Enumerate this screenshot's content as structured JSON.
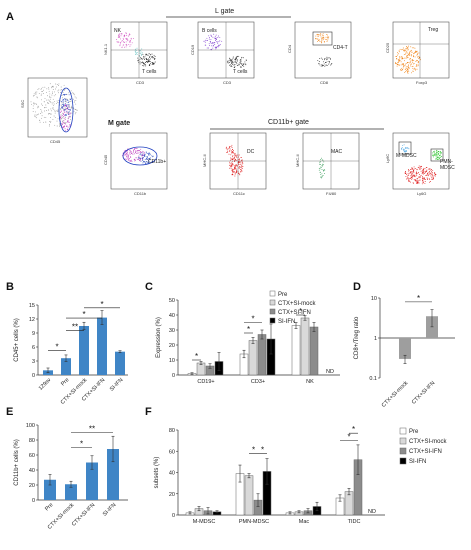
{
  "panels": {
    "a": "A",
    "b": "B",
    "c": "C",
    "d": "D",
    "e": "E",
    "f": "F"
  },
  "flow": {
    "l_gate": "L gate",
    "m_gate": "M gate",
    "cd11b_gate": "CD11b+ gate",
    "nk": "NK",
    "t_cells": "T cells",
    "b_cells": "B cells",
    "t_cells2": "T cells",
    "cd4t": "CD4-T",
    "treg": "Treg",
    "cd11b_plus": "CD11b+",
    "dc": "DC",
    "mac": "MAC",
    "m_mdsc": "M-MDSC",
    "pmn_mdsc_1": "PMN-",
    "pmn_mdsc_2": "MDSC",
    "axes": {
      "p0x": "CD45",
      "p0y": "SSC",
      "p1x": "CD3",
      "p1y": "NK1.1",
      "p2x": "CD3",
      "p2y": "CD19",
      "p3x": "CD8",
      "p3y": "CD4",
      "p4x": "Foxp3",
      "p4y": "CD25",
      "p5x": "CD11b",
      "p5y": "CD45",
      "p6x": "CD11c",
      "p6y": "MHC-II",
      "p7x": "F4/80",
      "p7y": "MHC-II",
      "p8x": "Ly6G",
      "p8y": "Ly6C"
    }
  },
  "chart_data": [
    {
      "id": "B",
      "type": "bar",
      "ylabel": "CD45+ cells (%)",
      "categories": [
        "129sv",
        "Pre",
        "CTX+SI-mock",
        "CTX+SI-IFN",
        "SI-IFN"
      ],
      "values": [
        1.0,
        3.6,
        10.5,
        12.3,
        5.0
      ],
      "errors": [
        0.5,
        0.7,
        0.8,
        1.5,
        0.2
      ],
      "ylim": [
        0,
        15
      ],
      "yticks": [
        0,
        3,
        6,
        9,
        12,
        15
      ],
      "significance": [
        "*",
        "**",
        "*",
        "*"
      ],
      "color": "#3f85c6"
    },
    {
      "id": "C",
      "type": "bar",
      "ylabel": "Expression (%)",
      "categories": [
        "CD19+",
        "CD3+",
        "NK"
      ],
      "series": [
        {
          "name": "Pre",
          "values": [
            1,
            14,
            33
          ],
          "errors": [
            0.5,
            2.5,
            2
          ],
          "color": "#ffffff"
        },
        {
          "name": "CTX+SI-mock",
          "values": [
            8,
            23,
            38
          ],
          "errors": [
            1,
            2,
            1.5
          ],
          "color": "#d9d9d9"
        },
        {
          "name": "CTX+SI-IFN",
          "values": [
            6,
            27,
            32
          ],
          "errors": [
            1.5,
            3,
            3
          ],
          "color": "#8c8c8c"
        },
        {
          "name": "SI-IFN",
          "values": [
            9,
            24,
            null
          ],
          "errors": [
            6,
            10,
            null
          ],
          "color": "#000000"
        }
      ],
      "ylim": [
        0,
        50
      ],
      "yticks": [
        0,
        10,
        20,
        30,
        40,
        50
      ],
      "significance": [
        "*",
        "*",
        "*",
        "*"
      ],
      "annotations": [
        "ND"
      ]
    },
    {
      "id": "D",
      "type": "bar",
      "ylabel": "CD8+/Treg ratio",
      "scale": "log",
      "categories": [
        "CTX+SI-mock",
        "CTX+SI-IFN"
      ],
      "values": [
        0.3,
        3.5
      ],
      "errors": [
        0.07,
        1.6
      ],
      "ylim": [
        0.1,
        10
      ],
      "yticks": [
        0.1,
        1,
        10
      ],
      "colors": [
        "#9e9e9e",
        "#9e9e9e"
      ],
      "significance": [
        "*"
      ]
    },
    {
      "id": "E",
      "type": "bar",
      "ylabel": "CD11b+ cells (%)",
      "categories": [
        "Pre",
        "CTX+SI-mock",
        "CTX+SI-IFN",
        "SI-IFN"
      ],
      "values": [
        27,
        21,
        50,
        68
      ],
      "errors": [
        7,
        4,
        9,
        17
      ],
      "ylim": [
        0,
        100
      ],
      "yticks": [
        0,
        20,
        40,
        60,
        80,
        100
      ],
      "significance": [
        "*",
        "**"
      ],
      "color": "#3f85c6"
    },
    {
      "id": "F",
      "type": "bar",
      "ylabel": "subsets (%)",
      "categories": [
        "M-MDSC",
        "PMN-MDSC",
        "Mac",
        "TIDC"
      ],
      "series": [
        {
          "name": "Pre",
          "values": [
            2,
            39,
            2,
            16
          ],
          "errors": [
            1,
            8,
            1,
            3
          ],
          "color": "#ffffff"
        },
        {
          "name": "CTX+SI-mock",
          "values": [
            6,
            37,
            3,
            22
          ],
          "errors": [
            2,
            2,
            1,
            3
          ],
          "color": "#d9d9d9"
        },
        {
          "name": "CTX+SI-IFN",
          "values": [
            4,
            14,
            4,
            52
          ],
          "errors": [
            3,
            6,
            2,
            14
          ],
          "color": "#8c8c8c"
        },
        {
          "name": "SI-IFN",
          "values": [
            3,
            41,
            8,
            null
          ],
          "errors": [
            1,
            12,
            4,
            null
          ],
          "color": "#000000"
        }
      ],
      "ylim": [
        0,
        80
      ],
      "yticks": [
        0,
        20,
        40,
        60,
        80
      ],
      "significance": [
        "*",
        "*",
        "*",
        "*"
      ],
      "annotations": [
        "ND"
      ]
    }
  ]
}
